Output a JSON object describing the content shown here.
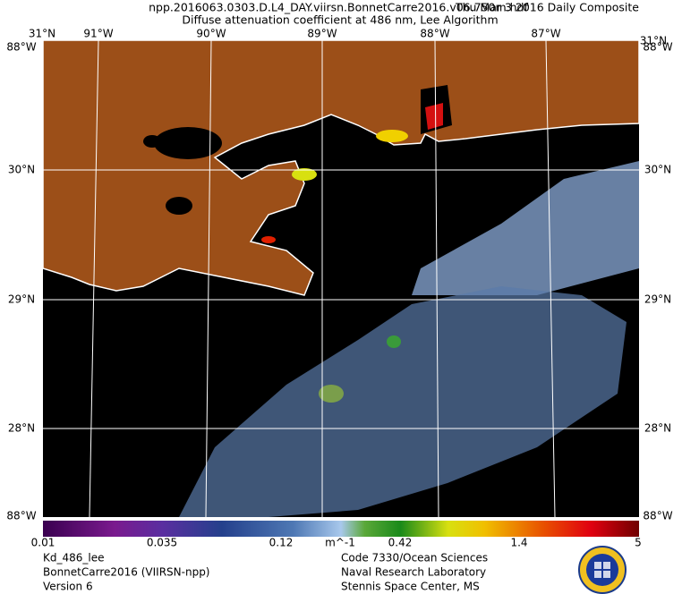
{
  "header": {
    "file": "npp.2016063.0303.D.L4_DAY.viirsn.BonnetCarre2016.v06.750m.hdf",
    "date": "Thu Mar  3 2016 Daily Composite",
    "subtitle": "Diffuse attenuation coefficient at 486 nm, Lee Algorithm"
  },
  "lon_labels": [
    "91°W",
    "90°W",
    "89°W",
    "88°W",
    "87°W"
  ],
  "lat_labels": [
    "30°N",
    "29°N",
    "28°N"
  ],
  "corner_labels": {
    "top_left": "31°N",
    "top_right": "31°N",
    "upper_left": "88°W",
    "upper_right": "88°W",
    "lower_left": "88°W",
    "lower_right": "88°W"
  },
  "colorbar": {
    "labels": [
      "0.01",
      "0.035",
      "0.12",
      "0.42",
      "1.4",
      "5"
    ],
    "unit": "m^-1"
  },
  "footer": {
    "left": [
      "Kd_486_lee",
      "BonnetCarre2016 (VIIRSN-npp)",
      "Version 6"
    ],
    "center": [
      "Code 7330/Ocean Sciences",
      "Naval Research Laboratory",
      "Stennis Space Center, MS"
    ]
  }
}
